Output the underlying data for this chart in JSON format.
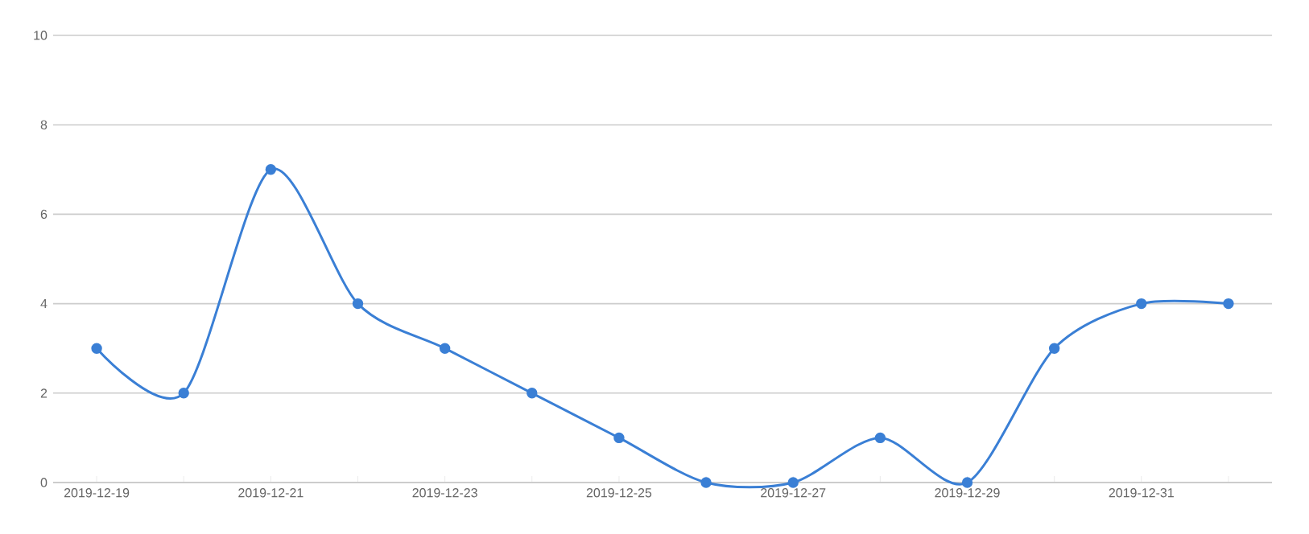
{
  "chart_data": {
    "type": "line",
    "categories": [
      "2019-12-19",
      null,
      "2019-12-21",
      null,
      "2019-12-23",
      null,
      "2019-12-25",
      null,
      "2019-12-27",
      null,
      "2019-12-29",
      null,
      "2019-12-31",
      null
    ],
    "series": [
      {
        "color": "#3a7fd5",
        "values": [
          3,
          2,
          7,
          4,
          3,
          2,
          1,
          0,
          0,
          1,
          0,
          3,
          4,
          4
        ]
      }
    ],
    "ylim": [
      0,
      10
    ],
    "yticks": [
      0,
      2,
      4,
      6,
      8,
      10
    ],
    "grid": "y",
    "marker": "circle",
    "line_style": "solid"
  }
}
